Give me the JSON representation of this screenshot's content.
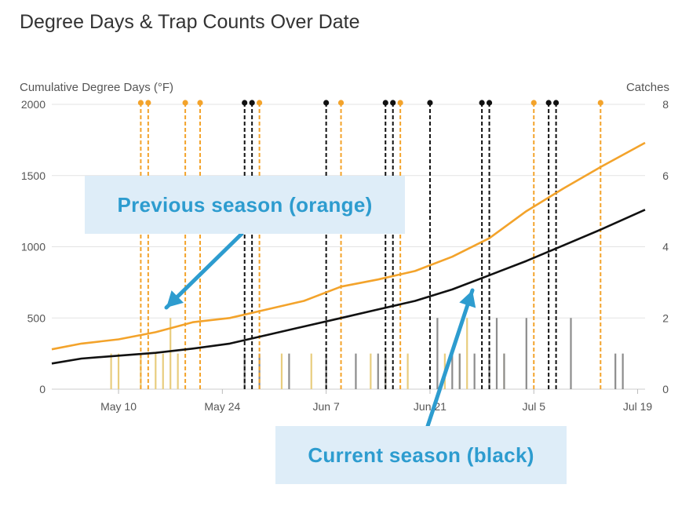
{
  "title": "Degree Days & Trap Counts Over Date",
  "callouts": {
    "previous": "Previous season (orange)",
    "current": "Current season (black)"
  },
  "colors": {
    "previous": "#f3a32b",
    "current": "#111111",
    "previous_bar": "#e8cd7e",
    "current_bar": "#8c8c8c",
    "callout_text": "#2d9ccf",
    "callout_bg": "#deedf8",
    "grid": "#e3e3e3"
  },
  "chart_data": {
    "type": "line",
    "title": "Degree Days & Trap Counts Over Date",
    "ylabel": "Cumulative Degree Days (°F)",
    "y2label": "Catches",
    "ylim": [
      0,
      2000
    ],
    "y2lim": [
      0,
      8
    ],
    "yticks": [
      "0",
      "500",
      "1000",
      "1500",
      "2000"
    ],
    "y2ticks": [
      "0",
      "2",
      "4",
      "6",
      "8"
    ],
    "xlim": [
      "2023-05-01",
      "2023-07-20"
    ],
    "xticks": [
      {
        "date": "2023-05-10",
        "label": "May 10"
      },
      {
        "date": "2023-05-24",
        "label": "May 24"
      },
      {
        "date": "2023-06-07",
        "label": "Jun 7"
      },
      {
        "date": "2023-06-21",
        "label": "Jun 21"
      },
      {
        "date": "2023-07-05",
        "label": "Jul 5"
      },
      {
        "date": "2023-07-19",
        "label": "Jul 19"
      }
    ],
    "grid": true,
    "series": [
      {
        "key": "previous",
        "x": [
          "2023-05-01",
          "2023-05-05",
          "2023-05-10",
          "2023-05-15",
          "2023-05-20",
          "2023-05-25",
          "2023-05-30",
          "2023-06-04",
          "2023-06-09",
          "2023-06-14",
          "2023-06-19",
          "2023-06-24",
          "2023-06-29",
          "2023-07-04",
          "2023-07-09",
          "2023-07-14",
          "2023-07-20"
        ],
        "y": [
          280,
          320,
          350,
          400,
          470,
          500,
          560,
          620,
          720,
          770,
          830,
          930,
          1060,
          1250,
          1410,
          1560,
          1730
        ]
      },
      {
        "key": "current",
        "x": [
          "2023-05-01",
          "2023-05-05",
          "2023-05-10",
          "2023-05-15",
          "2023-05-20",
          "2023-05-25",
          "2023-05-30",
          "2023-06-04",
          "2023-06-09",
          "2023-06-14",
          "2023-06-19",
          "2023-06-24",
          "2023-06-29",
          "2023-07-04",
          "2023-07-09",
          "2023-07-14",
          "2023-07-20"
        ],
        "y": [
          180,
          215,
          235,
          255,
          285,
          320,
          380,
          440,
          500,
          560,
          620,
          700,
          800,
          900,
          1010,
          1120,
          1260
        ]
      }
    ],
    "previous_events": [
      "2023-05-13",
      "2023-05-14",
      "2023-05-19",
      "2023-05-21",
      "2023-05-29",
      "2023-06-09",
      "2023-06-17",
      "2023-07-05",
      "2023-07-14"
    ],
    "current_events": [
      "2023-05-27",
      "2023-05-28",
      "2023-06-07",
      "2023-06-15",
      "2023-06-16",
      "2023-06-21",
      "2023-06-28",
      "2023-06-29",
      "2023-07-07",
      "2023-07-08"
    ],
    "previous_catches": [
      {
        "date": "2023-05-09",
        "count": 1
      },
      {
        "date": "2023-05-10",
        "count": 1
      },
      {
        "date": "2023-05-13",
        "count": 1
      },
      {
        "date": "2023-05-15",
        "count": 1
      },
      {
        "date": "2023-05-16",
        "count": 1
      },
      {
        "date": "2023-05-17",
        "count": 2
      },
      {
        "date": "2023-05-18",
        "count": 1
      },
      {
        "date": "2023-06-01",
        "count": 1
      },
      {
        "date": "2023-06-05",
        "count": 1
      },
      {
        "date": "2023-06-13",
        "count": 1
      },
      {
        "date": "2023-06-15",
        "count": 1
      },
      {
        "date": "2023-06-18",
        "count": 1
      },
      {
        "date": "2023-06-23",
        "count": 1
      },
      {
        "date": "2023-06-25",
        "count": 1
      },
      {
        "date": "2023-06-26",
        "count": 2
      },
      {
        "date": "2023-07-01",
        "count": 1
      }
    ],
    "current_catches": [
      {
        "date": "2023-05-27",
        "count": 1
      },
      {
        "date": "2023-05-29",
        "count": 1
      },
      {
        "date": "2023-06-02",
        "count": 1
      },
      {
        "date": "2023-06-07",
        "count": 1
      },
      {
        "date": "2023-06-11",
        "count": 1
      },
      {
        "date": "2023-06-14",
        "count": 1
      },
      {
        "date": "2023-06-15",
        "count": 1
      },
      {
        "date": "2023-06-22",
        "count": 2
      },
      {
        "date": "2023-06-24",
        "count": 1
      },
      {
        "date": "2023-06-25",
        "count": 1
      },
      {
        "date": "2023-06-27",
        "count": 1
      },
      {
        "date": "2023-06-29",
        "count": 1
      },
      {
        "date": "2023-06-30",
        "count": 2
      },
      {
        "date": "2023-07-01",
        "count": 1
      },
      {
        "date": "2023-07-04",
        "count": 2
      },
      {
        "date": "2023-07-10",
        "count": 2
      },
      {
        "date": "2023-07-16",
        "count": 1
      },
      {
        "date": "2023-07-17",
        "count": 1
      }
    ]
  }
}
